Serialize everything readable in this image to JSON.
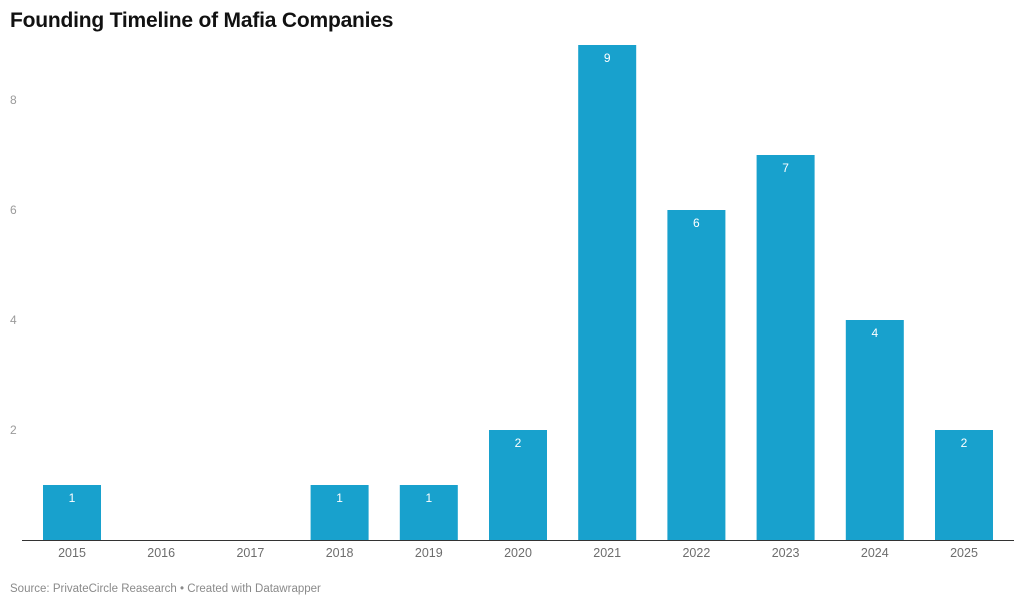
{
  "title": "Founding Timeline of Mafia Companies",
  "footer": {
    "source": "Source: PrivateCircle Reasearch",
    "separator": "•",
    "credit": "Created with Datawrapper"
  },
  "colors": {
    "bar": "#18a1cd",
    "axis": "#333333",
    "label": "#ffffff"
  },
  "chart_data": {
    "type": "bar",
    "title": "Founding Timeline of Mafia Companies",
    "xlabel": "",
    "ylabel": "",
    "categories": [
      "2015",
      "2016",
      "2017",
      "2018",
      "2019",
      "2020",
      "2021",
      "2022",
      "2023",
      "2024",
      "2025"
    ],
    "values": [
      1,
      0,
      0,
      1,
      1,
      2,
      9,
      6,
      7,
      4,
      2
    ],
    "value_labels": [
      "1",
      "",
      "",
      "1",
      "1",
      "2",
      "9",
      "6",
      "7",
      "4",
      "2"
    ],
    "yticks": [
      2,
      4,
      6,
      8
    ],
    "ylim": [
      0,
      9
    ],
    "grid": false,
    "legend": "none"
  }
}
